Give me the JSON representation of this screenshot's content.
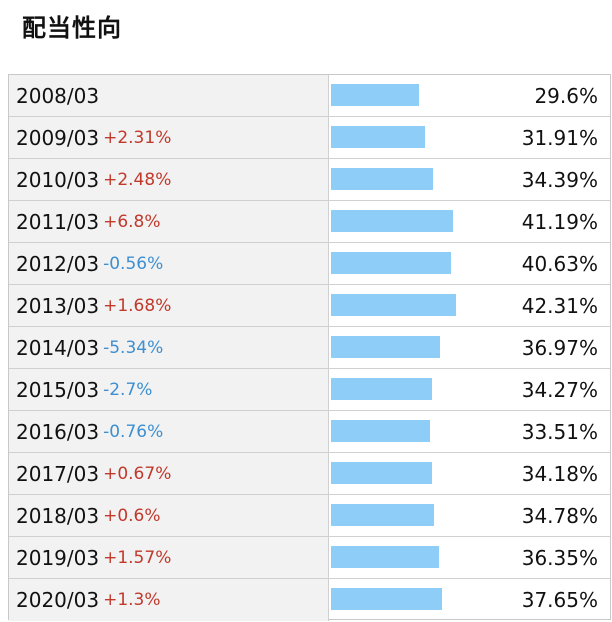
{
  "title": "配当性向",
  "rows": [
    {
      "year": "2008/03",
      "change": "",
      "direction": "",
      "value": "29.6%",
      "ratio": 29.6
    },
    {
      "year": "2009/03",
      "change": "+2.31%",
      "direction": "up",
      "value": "31.91%",
      "ratio": 31.91
    },
    {
      "year": "2010/03",
      "change": "+2.48%",
      "direction": "up",
      "value": "34.39%",
      "ratio": 34.39
    },
    {
      "year": "2011/03",
      "change": "+6.8%",
      "direction": "up",
      "value": "41.19%",
      "ratio": 41.19
    },
    {
      "year": "2012/03",
      "change": "-0.56%",
      "direction": "down",
      "value": "40.63%",
      "ratio": 40.63
    },
    {
      "year": "2013/03",
      "change": "+1.68%",
      "direction": "up",
      "value": "42.31%",
      "ratio": 42.31
    },
    {
      "year": "2014/03",
      "change": "-5.34%",
      "direction": "down",
      "value": "36.97%",
      "ratio": 36.97
    },
    {
      "year": "2015/03",
      "change": "-2.7%",
      "direction": "down",
      "value": "34.27%",
      "ratio": 34.27
    },
    {
      "year": "2016/03",
      "change": "-0.76%",
      "direction": "down",
      "value": "33.51%",
      "ratio": 33.51
    },
    {
      "year": "2017/03",
      "change": "+0.67%",
      "direction": "up",
      "value": "34.18%",
      "ratio": 34.18
    },
    {
      "year": "2018/03",
      "change": "+0.6%",
      "direction": "up",
      "value": "34.78%",
      "ratio": 34.78
    },
    {
      "year": "2019/03",
      "change": "+1.57%",
      "direction": "up",
      "value": "36.35%",
      "ratio": 36.35
    },
    {
      "year": "2020/03",
      "change": "+1.3%",
      "direction": "up",
      "value": "37.65%",
      "ratio": 37.65
    }
  ],
  "colors": {
    "bar": "#8fcdf9",
    "up": "#c0392b",
    "down": "#3d8fd1"
  }
}
